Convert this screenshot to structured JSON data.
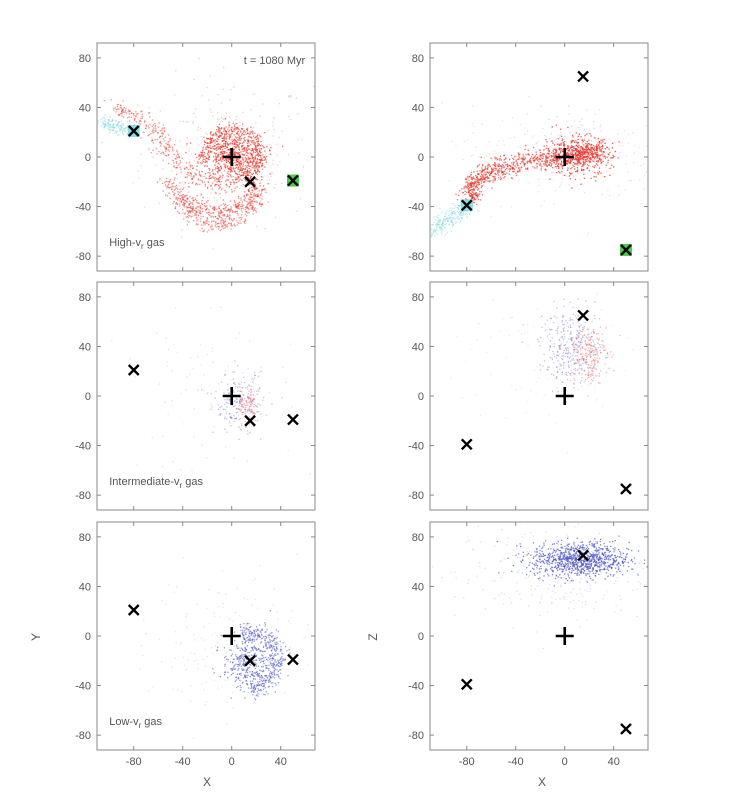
{
  "figure": {
    "time_label": "t = 1080 Myr",
    "xlabel": "X",
    "ylabel_left": "Y",
    "ylabel_right": "Z",
    "x_ticks": [
      -80,
      -40,
      0,
      40
    ],
    "y_ticks": [
      80,
      40,
      0,
      -40,
      -80
    ]
  },
  "colors": {
    "red": "#e8352a",
    "blue": "#4a52c8",
    "cyan": "#7fd9e0",
    "green": "#39c239",
    "axis": "#888888",
    "tick_text": "#555555"
  },
  "chart_data": [
    {
      "type": "scatter",
      "panel": "high-vr-xy",
      "title": "High-v_r gas",
      "projection": "x-y",
      "xlim": [
        -110,
        68
      ],
      "ylim": [
        -92,
        92
      ],
      "time_label": "t = 1080 Myr",
      "center_plus": [
        0,
        0
      ],
      "crosses": [
        [
          -80,
          21,
          "cyan"
        ],
        [
          15,
          -20,
          "none"
        ],
        [
          50,
          -19,
          "green"
        ]
      ],
      "gas_color": "red",
      "gas_structures": [
        "central-disk",
        "spiral-tidal-arms",
        "southern-tail",
        "cyan-tail-west"
      ]
    },
    {
      "type": "scatter",
      "panel": "high-vr-xz",
      "title": "",
      "projection": "x-z",
      "xlim": [
        -110,
        68
      ],
      "ylim": [
        -92,
        92
      ],
      "center_plus": [
        0,
        0
      ],
      "crosses": [
        [
          -80,
          -39,
          "cyan"
        ],
        [
          15,
          65,
          "none"
        ],
        [
          50,
          -75,
          "green"
        ]
      ],
      "gas_color": "red",
      "gas_structures": [
        "bar-bridge",
        "cyan-tail-southwest"
      ]
    },
    {
      "type": "scatter",
      "panel": "intermediate-vr-xy",
      "title": "Intermediate-v_r gas",
      "projection": "x-y",
      "xlim": [
        -110,
        68
      ],
      "ylim": [
        -92,
        92
      ],
      "center_plus": [
        0,
        0
      ],
      "crosses": [
        [
          -80,
          21,
          "none"
        ],
        [
          15,
          -20,
          "none"
        ],
        [
          50,
          -19,
          "none"
        ]
      ],
      "gas_color": "mixed-blue-red",
      "gas_structures": [
        "faint-clump-near-center"
      ]
    },
    {
      "type": "scatter",
      "panel": "intermediate-vr-xz",
      "title": "",
      "projection": "x-z",
      "xlim": [
        -110,
        68
      ],
      "ylim": [
        -92,
        92
      ],
      "center_plus": [
        0,
        0
      ],
      "crosses": [
        [
          -80,
          -39,
          "none"
        ],
        [
          15,
          65,
          "none"
        ],
        [
          50,
          -75,
          "none"
        ]
      ],
      "gas_color": "mixed-blue-red",
      "gas_structures": [
        "clump-above-center"
      ]
    },
    {
      "type": "scatter",
      "panel": "low-vr-xy",
      "title": "Low-v_r gas",
      "projection": "x-y",
      "xlim": [
        -110,
        68
      ],
      "ylim": [
        -92,
        92
      ],
      "center_plus": [
        0,
        0
      ],
      "crosses": [
        [
          -80,
          21,
          "none"
        ],
        [
          15,
          -20,
          "none"
        ],
        [
          50,
          -19,
          "none"
        ]
      ],
      "gas_color": "blue",
      "gas_structures": [
        "arc-around-cross"
      ]
    },
    {
      "type": "scatter",
      "panel": "low-vr-xz",
      "title": "",
      "projection": "x-z",
      "xlim": [
        -110,
        68
      ],
      "ylim": [
        -92,
        92
      ],
      "center_plus": [
        0,
        0
      ],
      "crosses": [
        [
          -80,
          -39,
          "none"
        ],
        [
          15,
          65,
          "none"
        ],
        [
          50,
          -75,
          "none"
        ]
      ],
      "gas_color": "blue",
      "gas_structures": [
        "dense-blob-at-cross"
      ]
    }
  ]
}
